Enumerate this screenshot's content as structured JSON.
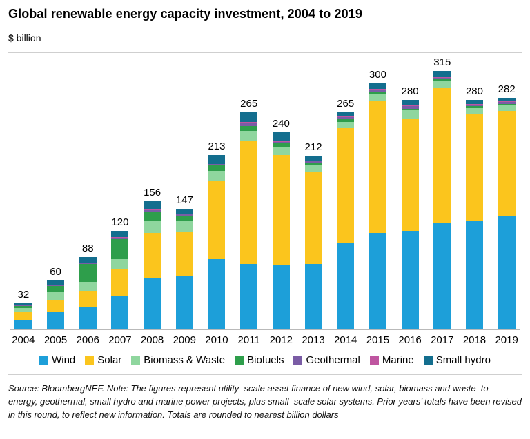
{
  "title": "Global renewable energy capacity investment, 2004 to 2019",
  "unit_label": "$ billion",
  "chart_data": {
    "type": "bar",
    "stacked": true,
    "title": "Global renewable energy capacity investment, 2004 to 2019",
    "ylabel": "$ billion",
    "ylim": [
      0,
      340
    ],
    "grid": false,
    "legend_position": "bottom",
    "categories": [
      "2004",
      "2005",
      "2006",
      "2007",
      "2008",
      "2009",
      "2010",
      "2011",
      "2012",
      "2013",
      "2014",
      "2015",
      "2016",
      "2017",
      "2018",
      "2019"
    ],
    "totals": [
      32,
      60,
      88,
      120,
      156,
      147,
      213,
      265,
      240,
      212,
      265,
      300,
      280,
      315,
      280,
      282
    ],
    "series": [
      {
        "name": "Wind",
        "color": "#1d9fd9",
        "values": [
          12,
          21,
          28,
          41,
          63,
          65,
          86,
          80,
          78,
          80,
          105,
          118,
          120,
          130,
          132,
          138
        ]
      },
      {
        "name": "Solar",
        "color": "#fbc51d",
        "values": [
          9,
          15,
          19,
          33,
          55,
          54,
          95,
          150,
          135,
          112,
          140,
          160,
          137,
          165,
          130,
          128
        ]
      },
      {
        "name": "Biomass & Waste",
        "color": "#8fd69e",
        "values": [
          5,
          9,
          11,
          12,
          14,
          13,
          12,
          12,
          9,
          8,
          8,
          9,
          10,
          8,
          8,
          7
        ]
      },
      {
        "name": "Biofuels",
        "color": "#2e9e4b",
        "values": [
          3,
          8,
          22,
          24,
          12,
          6,
          7,
          6,
          5,
          3,
          4,
          3,
          2,
          2,
          2,
          2
        ]
      },
      {
        "name": "Geothermal",
        "color": "#7a5ca5",
        "values": [
          1,
          2,
          1,
          2,
          2,
          3,
          2,
          4,
          2,
          2,
          2,
          2,
          3,
          2,
          2,
          2
        ]
      },
      {
        "name": "Marine",
        "color": "#bf55a0",
        "values": [
          0,
          0,
          0,
          1,
          1,
          0,
          0,
          1,
          1,
          1,
          1,
          1,
          1,
          1,
          1,
          1
        ]
      },
      {
        "name": "Small hydro",
        "color": "#136e8e",
        "values": [
          2,
          5,
          7,
          7,
          9,
          6,
          11,
          12,
          10,
          6,
          5,
          7,
          7,
          7,
          5,
          4
        ]
      }
    ]
  },
  "source_note": "Source: BloombergNEF. Note: The figures represent utility–scale asset finance of new wind, solar, biomass and waste–to–energy, geothermal, small hydro and marine power projects, plus small–scale solar systems. Prior years’ totals have been revised in this round, to reflect new information. Totals are rounded to nearest billion dollars"
}
